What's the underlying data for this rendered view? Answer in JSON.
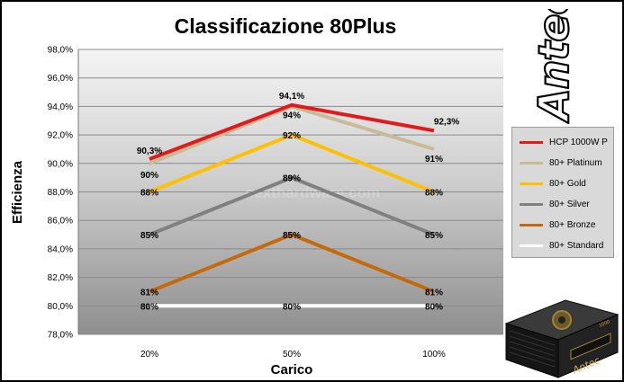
{
  "chart_data": {
    "type": "line",
    "title": "Classificazione 80Plus",
    "xlabel": "Carico",
    "ylabel": "Efficienza",
    "categories": [
      "20%",
      "50%",
      "100%"
    ],
    "ylim": [
      78,
      98
    ],
    "yticks": [
      "78,0%",
      "80,0%",
      "82,0%",
      "84,0%",
      "86,0%",
      "88,0%",
      "90,0%",
      "92,0%",
      "94,0%",
      "96,0%",
      "98,0%"
    ],
    "grid": true,
    "legend_position": "right",
    "series": [
      {
        "name": "HCP 1000W P",
        "values": [
          90.3,
          94.1,
          92.3
        ],
        "labels": [
          "90,3%",
          "94,1%",
          "92,3%"
        ],
        "color": "#e31a1c"
      },
      {
        "name": "80+ Platinum",
        "values": [
          90,
          94,
          91
        ],
        "labels": [
          "90%",
          "94%",
          "91%"
        ],
        "color": "#c8bb98"
      },
      {
        "name": "80+ Gold",
        "values": [
          88,
          92,
          88
        ],
        "labels": [
          "88%",
          "92%",
          "88%"
        ],
        "color": "#ffc000"
      },
      {
        "name": "80+ Silver",
        "values": [
          85,
          89,
          85
        ],
        "labels": [
          "85%",
          "89%",
          "85%"
        ],
        "color": "#808080"
      },
      {
        "name": "80+ Bronze",
        "values": [
          81,
          85,
          81
        ],
        "labels": [
          "81%",
          "85%",
          "81%"
        ],
        "color": "#c46a0a"
      },
      {
        "name": "80+ Standard",
        "values": [
          80,
          80,
          80
        ],
        "labels": [
          "80%",
          "80%",
          "80%"
        ],
        "color": "#ffffff"
      }
    ]
  },
  "watermark": "nexthardware.com",
  "brand": "Antec",
  "product_badge": "1000"
}
